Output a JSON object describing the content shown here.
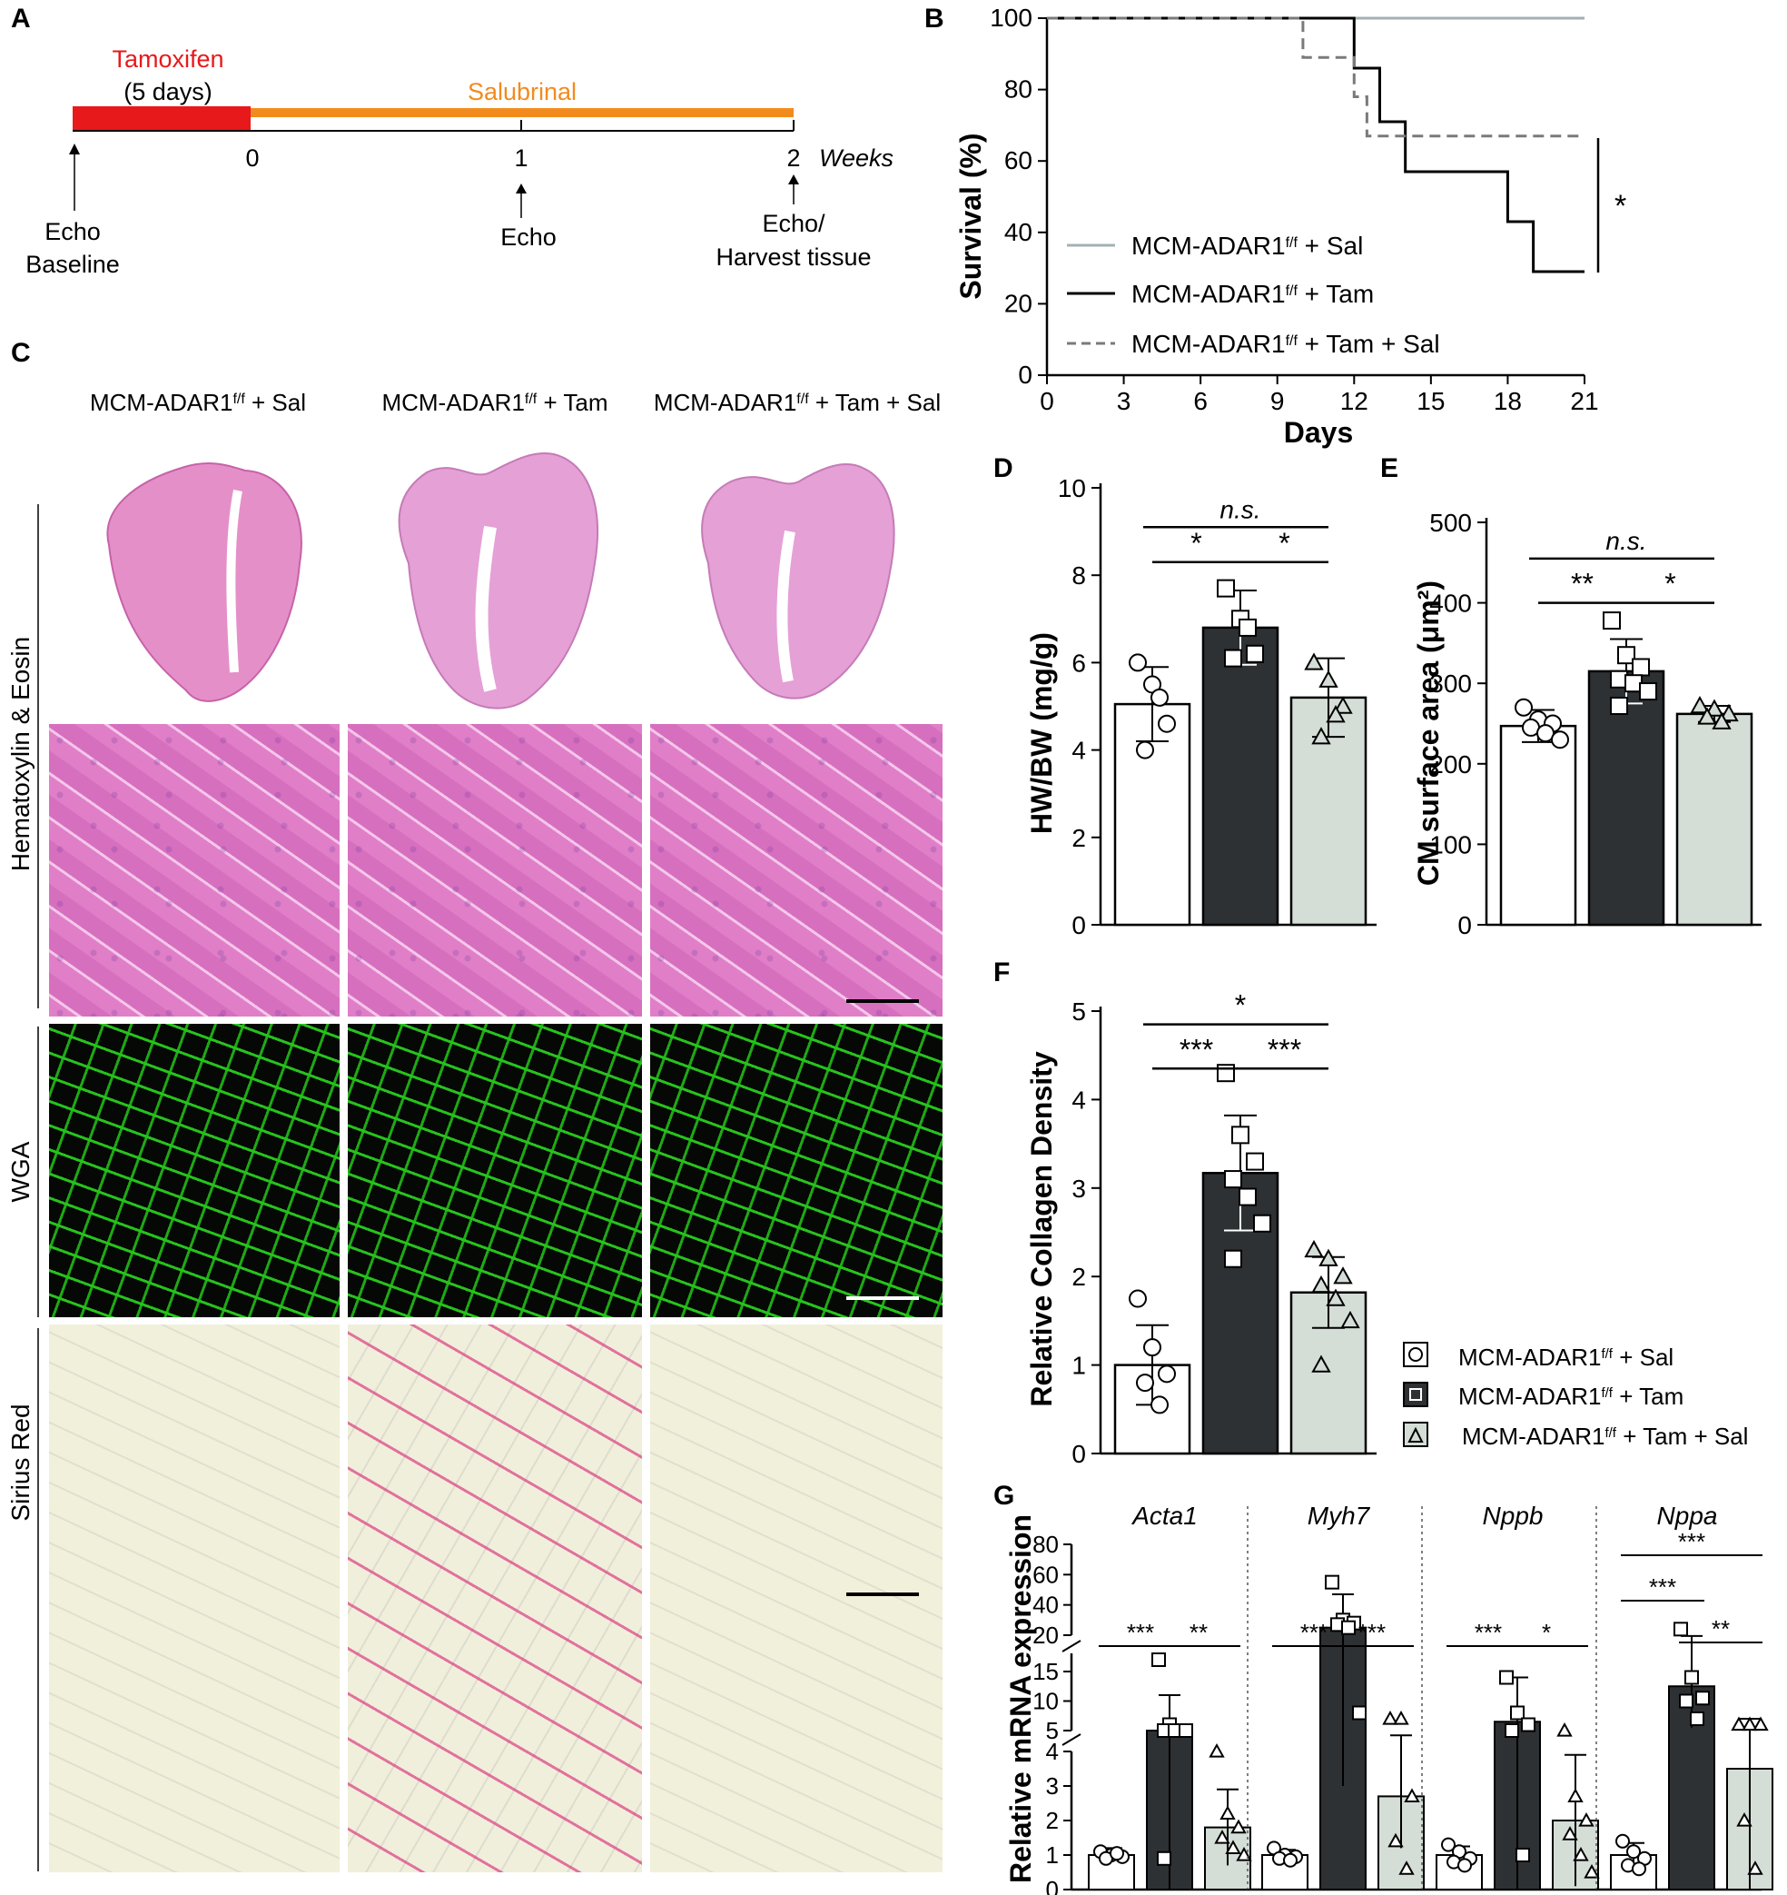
{
  "panel_letters": {
    "A": "A",
    "B": "B",
    "C": "C",
    "D": "D",
    "E": "E",
    "F": "F",
    "G": "G"
  },
  "colors": {
    "tam": "#e8191b",
    "sal": "#f28b1e",
    "bar_sal": "#ffffff",
    "bar_tam": "#2d3133",
    "bar_tamsal": "#d4ddd6",
    "line_sal": "#a4b0b3",
    "line_tam": "#000000",
    "line_tamsal": "#7a7a7a"
  },
  "timeline": {
    "tamoxifen": "Tamoxifen",
    "days5": "(5 days)",
    "salubrinal": "Salubrinal",
    "ticks": [
      "0",
      "1",
      "2"
    ],
    "weeks": "Weeks",
    "echo_baseline_1": "Echo",
    "echo_baseline_2": "Baseline",
    "echo": "Echo",
    "harvest_1": "Echo/",
    "harvest_2": "Harvest tissue"
  },
  "histology": {
    "col_labels": [
      "MCM-ADAR1",
      "MCM-ADAR1",
      "MCM-ADAR1"
    ],
    "col_sup": "f/f",
    "col_suffix": [
      " + Sal",
      " + Tam",
      " + Tam + Sal"
    ],
    "row_labels": [
      "Hematoxylin & Eosin",
      "WGA",
      "Sirius Red"
    ]
  },
  "legend": {
    "base": "MCM-ADAR1",
    "sup": "f/f",
    "suffix": [
      " + Sal",
      " + Tam",
      " + Tam + Sal"
    ]
  },
  "chart_data": [
    {
      "id": "B",
      "type": "line",
      "xlabel": "Days",
      "ylabel": "Survival (%)",
      "xlim": [
        0,
        21
      ],
      "ylim": [
        0,
        100
      ],
      "xticks": [
        0,
        3,
        6,
        9,
        12,
        15,
        18,
        21
      ],
      "yticks": [
        0,
        20,
        40,
        60,
        80,
        100
      ],
      "significance": "*",
      "series": [
        {
          "name": "MCM-ADAR1f/f + Sal",
          "x": [
            0,
            21
          ],
          "y": [
            100,
            100
          ]
        },
        {
          "name": "MCM-ADAR1f/f + Tam",
          "x": [
            0,
            12,
            12,
            12.5,
            12.5,
            13,
            13,
            14,
            14,
            18,
            18,
            19,
            19,
            21
          ],
          "y": [
            100,
            100,
            86,
            86,
            86,
            86,
            71,
            71,
            57,
            57,
            43,
            43,
            29,
            29
          ]
        },
        {
          "name": "MCM-ADAR1f/f + Tam + Sal",
          "x": [
            0,
            10,
            10,
            12,
            12,
            12.5,
            12.5,
            21
          ],
          "y": [
            100,
            100,
            89,
            89,
            78,
            78,
            67,
            67
          ]
        }
      ]
    },
    {
      "id": "D",
      "type": "bar",
      "ylabel": "HW/BW (mg/g)",
      "ylim": [
        0,
        10
      ],
      "yticks": [
        0,
        2,
        4,
        6,
        8,
        10
      ],
      "values": [
        5.05,
        6.8,
        5.2
      ],
      "errors": [
        0.85,
        0.85,
        0.9
      ],
      "points": [
        [
          6.0,
          5.5,
          4.6,
          4.0,
          5.2
        ],
        [
          7.7,
          7.0,
          6.2,
          6.1,
          6.8
        ],
        [
          6.0,
          5.6,
          5.0,
          4.3,
          4.8
        ]
      ],
      "significance": [
        {
          "from": 0,
          "to": 2,
          "label": "n.s.",
          "y": 9.1
        },
        {
          "from": 0,
          "to": 1,
          "label": "*",
          "y": 8.3
        },
        {
          "from": 1,
          "to": 2,
          "label": "*",
          "y": 8.3
        }
      ]
    },
    {
      "id": "E",
      "type": "bar",
      "ylabel": "CM surface area (μm²)",
      "ylim": [
        0,
        500
      ],
      "yticks": [
        0,
        100,
        200,
        300,
        400,
        500
      ],
      "values": [
        247,
        315,
        262
      ],
      "errors": [
        20,
        40,
        10
      ],
      "points": [
        [
          270,
          255,
          250,
          245,
          238,
          230
        ],
        [
          378,
          335,
          320,
          305,
          300,
          290,
          272
        ],
        [
          272,
          268,
          262,
          258,
          252
        ]
      ],
      "significance": [
        {
          "from": 0,
          "to": 2,
          "label": "n.s.",
          "y": 455
        },
        {
          "from": 0,
          "to": 1,
          "label": "**",
          "y": 400
        },
        {
          "from": 1,
          "to": 2,
          "label": "*",
          "y": 400
        }
      ]
    },
    {
      "id": "F",
      "type": "bar",
      "ylabel": "Relative Collagen Density",
      "ylim": [
        0,
        5
      ],
      "yticks": [
        0,
        1,
        2,
        3,
        4,
        5
      ],
      "values": [
        1.0,
        3.17,
        1.82
      ],
      "errors": [
        0.45,
        0.65,
        0.4
      ],
      "points": [
        [
          1.75,
          1.2,
          0.9,
          0.8,
          0.55
        ],
        [
          4.3,
          3.6,
          3.3,
          3.1,
          2.9,
          2.6,
          2.2
        ],
        [
          2.3,
          2.2,
          2.0,
          1.9,
          1.75,
          1.5,
          1.0
        ]
      ],
      "significance": [
        {
          "from": 0,
          "to": 2,
          "label": "*",
          "y": 4.85
        },
        {
          "from": 0,
          "to": 1,
          "label": "***",
          "y": 4.35
        },
        {
          "from": 1,
          "to": 2,
          "label": "***",
          "y": 4.35
        }
      ]
    },
    {
      "id": "G",
      "type": "bar",
      "ylabel": "Relative mRNA expression",
      "yticks_low": [
        0,
        1,
        2,
        3,
        4
      ],
      "yticks_mid": [
        5,
        10,
        15
      ],
      "yticks_high": [
        20,
        40,
        60,
        80
      ],
      "groups": [
        {
          "gene": "Acta1",
          "values": [
            1.0,
            5.0,
            1.8
          ],
          "errors": [
            0.2,
            6.0,
            1.1
          ],
          "points": [
            [
              1.1,
              1.0,
              0.95,
              0.9,
              1.05
            ],
            [
              17,
              6,
              5,
              5,
              5,
              5,
              0.9
            ],
            [
              4,
              2.2,
              1.8,
              1.5,
              1.2,
              1.0
            ]
          ],
          "sig": [
            {
              "from": 0,
              "to": 1,
              "label": "***"
            },
            {
              "from": 1,
              "to": 2,
              "label": "**"
            }
          ]
        },
        {
          "gene": "Myh7",
          "values": [
            1.0,
            25,
            2.7
          ],
          "errors": [
            0.15,
            22,
            1.5
          ],
          "points": [
            [
              1.2,
              1.0,
              0.95,
              0.9,
              0.85
            ],
            [
              55,
              30,
              28,
              27,
              25,
              8
            ],
            [
              7,
              7,
              2.7,
              1.4,
              0.6
            ]
          ],
          "sig": [
            {
              "from": 0,
              "to": 1,
              "label": "***"
            },
            {
              "from": 1,
              "to": 2,
              "label": "***"
            }
          ]
        },
        {
          "gene": "Nppb",
          "values": [
            1.0,
            6.5,
            2.0
          ],
          "errors": [
            0.25,
            7.5,
            1.9
          ],
          "points": [
            [
              1.3,
              1.1,
              0.9,
              0.8,
              0.7
            ],
            [
              14,
              8,
              6,
              5,
              1
            ],
            [
              5,
              2.7,
              2.0,
              1.6,
              1.0,
              0.5
            ]
          ],
          "sig": [
            {
              "from": 0,
              "to": 1,
              "label": "***"
            },
            {
              "from": 1,
              "to": 2,
              "label": "*"
            }
          ]
        },
        {
          "gene": "Nppa",
          "values": [
            1.0,
            12.5,
            3.5
          ],
          "errors": [
            0.35,
            7.0,
            3.5
          ],
          "points": [
            [
              1.4,
              1.1,
              0.9,
              0.7,
              0.6
            ],
            [
              24,
              14,
              10.5,
              10,
              7
            ],
            [
              6,
              6,
              6,
              2.0,
              0.6
            ]
          ],
          "sig": [
            {
              "from": 0,
              "to": 1,
              "label": "***"
            },
            {
              "from": 1,
              "to": 2,
              "label": "**"
            },
            {
              "from": 0,
              "to": 2,
              "label": "***"
            }
          ]
        }
      ]
    }
  ]
}
